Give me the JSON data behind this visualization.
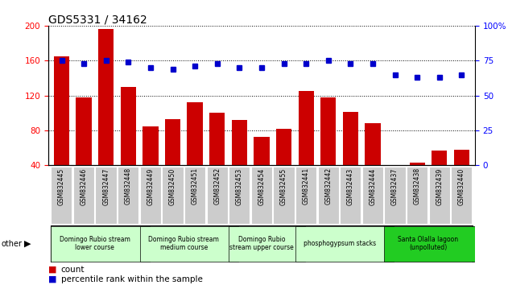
{
  "title": "GDS5331 / 34162",
  "samples": [
    "GSM832445",
    "GSM832446",
    "GSM832447",
    "GSM832448",
    "GSM832449",
    "GSM832450",
    "GSM832451",
    "GSM832452",
    "GSM832453",
    "GSM832454",
    "GSM832455",
    "GSM832441",
    "GSM832442",
    "GSM832443",
    "GSM832444",
    "GSM832437",
    "GSM832438",
    "GSM832439",
    "GSM832440"
  ],
  "counts": [
    165,
    118,
    196,
    130,
    85,
    93,
    112,
    100,
    92,
    73,
    82,
    125,
    118,
    101,
    88,
    40,
    43,
    57,
    58
  ],
  "percentiles": [
    75,
    73,
    75,
    74,
    70,
    69,
    71,
    73,
    70,
    70,
    73,
    73,
    75,
    73,
    73,
    65,
    63,
    63,
    65
  ],
  "bar_color": "#cc0000",
  "dot_color": "#0000cc",
  "ylim_left": [
    40,
    200
  ],
  "ylim_right": [
    0,
    100
  ],
  "yticks_left": [
    40,
    80,
    120,
    160,
    200
  ],
  "yticks_right": [
    0,
    25,
    50,
    75,
    100
  ],
  "groups": [
    {
      "label": "Domingo Rubio stream\nlower course",
      "start": 0,
      "end": 4,
      "color": "#ccffcc"
    },
    {
      "label": "Domingo Rubio stream\nmedium course",
      "start": 4,
      "end": 8,
      "color": "#ccffcc"
    },
    {
      "label": "Domingo Rubio\nstream upper course",
      "start": 8,
      "end": 11,
      "color": "#ccffcc"
    },
    {
      "label": "phosphogypsum stacks",
      "start": 11,
      "end": 15,
      "color": "#ccffcc"
    },
    {
      "label": "Santa Olalla lagoon\n(unpolluted)",
      "start": 15,
      "end": 19,
      "color": "#22cc22"
    }
  ],
  "tick_bg_color": "#cccccc",
  "other_label": "other"
}
